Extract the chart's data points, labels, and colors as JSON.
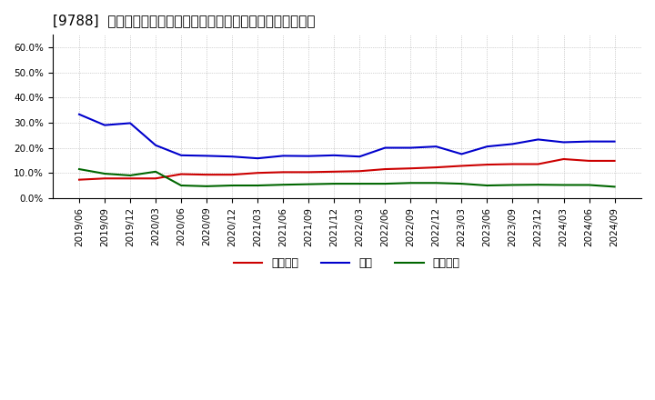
{
  "title": "[9788]  売上債権、在庫、買入債務の総資産に対する比率の推移",
  "x_labels": [
    "2019/06",
    "2019/09",
    "2019/12",
    "2020/03",
    "2020/06",
    "2020/09",
    "2020/12",
    "2021/03",
    "2021/06",
    "2021/09",
    "2021/12",
    "2022/03",
    "2022/06",
    "2022/09",
    "2022/12",
    "2023/03",
    "2023/06",
    "2023/09",
    "2023/12",
    "2024/03",
    "2024/06",
    "2024/09"
  ],
  "receivables": [
    0.073,
    0.078,
    0.078,
    0.078,
    0.095,
    0.093,
    0.093,
    0.1,
    0.103,
    0.103,
    0.105,
    0.107,
    0.115,
    0.118,
    0.122,
    0.128,
    0.133,
    0.135,
    0.135,
    0.155,
    0.148,
    0.148
  ],
  "inventory": [
    0.333,
    0.29,
    0.298,
    0.21,
    0.17,
    0.168,
    0.165,
    0.158,
    0.168,
    0.167,
    0.17,
    0.165,
    0.2,
    0.2,
    0.205,
    0.175,
    0.205,
    0.215,
    0.233,
    0.222,
    0.225,
    0.225
  ],
  "payables": [
    0.115,
    0.097,
    0.09,
    0.105,
    0.05,
    0.047,
    0.05,
    0.05,
    0.053,
    0.055,
    0.057,
    0.057,
    0.057,
    0.06,
    0.06,
    0.057,
    0.05,
    0.052,
    0.053,
    0.052,
    0.052,
    0.045
  ],
  "receivables_color": "#cc0000",
  "inventory_color": "#0000cc",
  "payables_color": "#006600",
  "ylim": [
    0.0,
    0.65
  ],
  "yticks": [
    0.0,
    0.1,
    0.2,
    0.3,
    0.4,
    0.5,
    0.6
  ],
  "ytick_labels": [
    "0.0%",
    "10.0%",
    "20.0%",
    "30.0%",
    "40.0%",
    "50.0%",
    "60.0%"
  ],
  "legend_labels": [
    "売上債権",
    "在庫",
    "買入債務"
  ],
  "bg_color": "#ffffff",
  "grid_color": "#aaaaaa",
  "title_fontsize": 11,
  "axis_fontsize": 7.5,
  "legend_fontsize": 9
}
